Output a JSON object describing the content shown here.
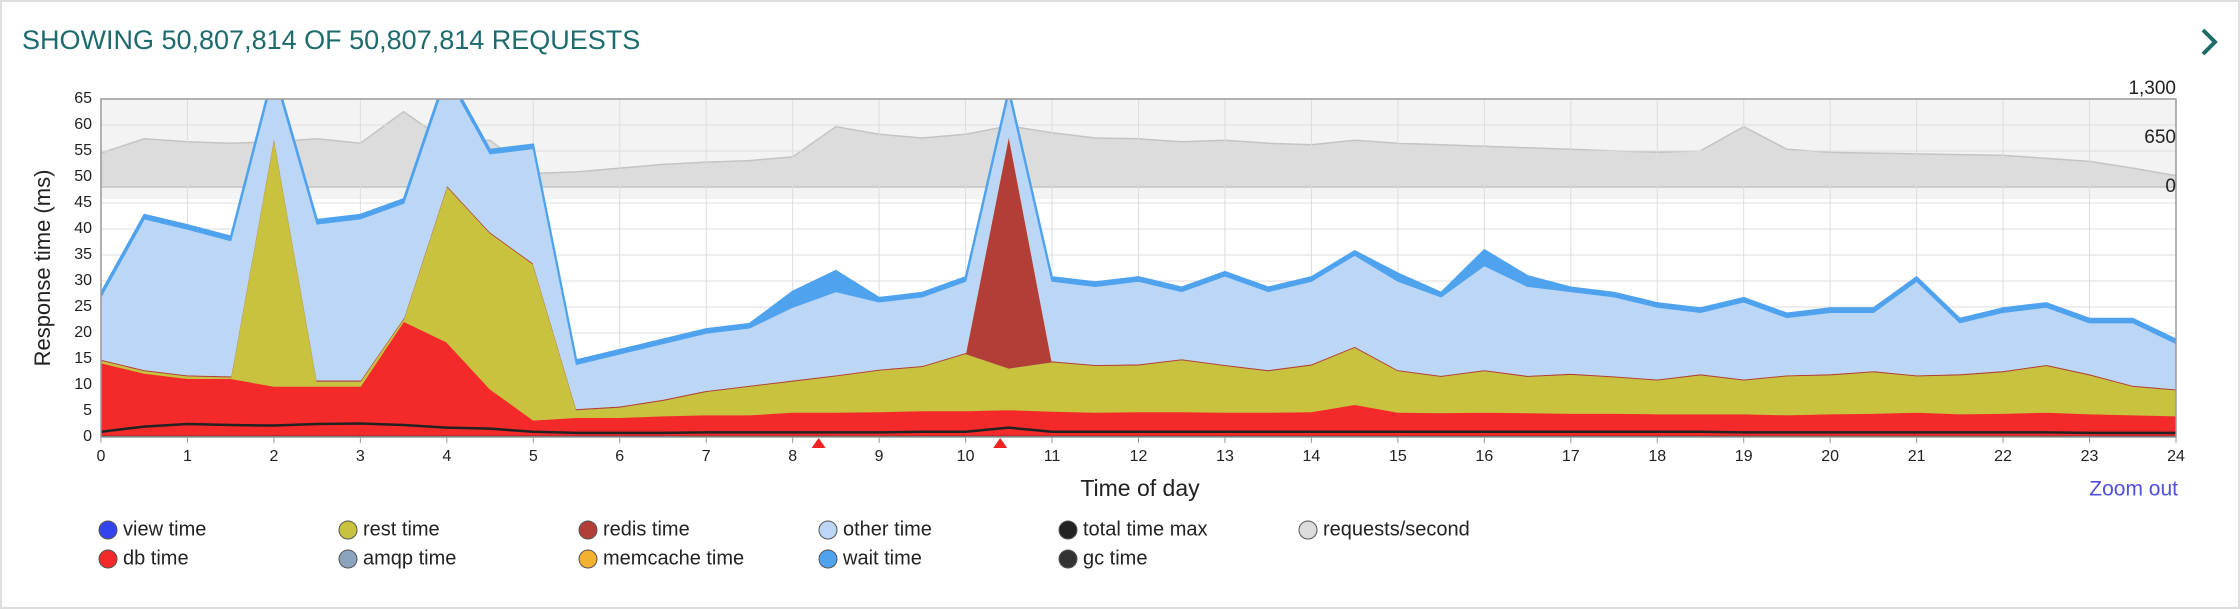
{
  "chart_data": {
    "type": "area",
    "title": "SHOWING 50,807,814 OF 50,807,814 REQUESTS",
    "xlabel": "Time of day",
    "ylabel": "Response time (ms)",
    "zoom_button": "Zoom out",
    "x": [
      0,
      0.5,
      1,
      1.5,
      2,
      2.5,
      3,
      3.5,
      4,
      4.5,
      5,
      5.5,
      6,
      6.5,
      7,
      7.5,
      8,
      8.5,
      9,
      9.5,
      10,
      10.5,
      11,
      11.5,
      12,
      12.5,
      13,
      13.5,
      14,
      14.5,
      15,
      15.5,
      16,
      16.5,
      17,
      17.5,
      18,
      18.5,
      19,
      19.5,
      20,
      20.5,
      21,
      21.5,
      22,
      22.5,
      23,
      23.5,
      24
    ],
    "xlim": [
      0,
      24
    ],
    "xticks": [
      0,
      1,
      2,
      3,
      4,
      5,
      6,
      7,
      8,
      9,
      10,
      11,
      12,
      13,
      14,
      15,
      16,
      17,
      18,
      19,
      20,
      21,
      22,
      23,
      24
    ],
    "ylim": [
      0,
      65
    ],
    "yticks": [
      0,
      5,
      10,
      15,
      20,
      25,
      30,
      35,
      40,
      45,
      50,
      55,
      60,
      65
    ],
    "y2lim": [
      0,
      1300
    ],
    "y2ticks": [
      0,
      650,
      {
        "value": 1300,
        "label": "1,300"
      }
    ],
    "grid": true,
    "event_markers": [
      8.3,
      10.4
    ],
    "event_color": "#ee2222",
    "series": [
      {
        "name": "view time",
        "color": "#3344ee",
        "kind": "area",
        "values": [
          0.3,
          0.3,
          0.3,
          0.3,
          0.3,
          0.3,
          0.3,
          0.3,
          0.3,
          0.3,
          0.3,
          0.3,
          0.3,
          0.3,
          0.3,
          0.3,
          0.3,
          0.3,
          0.3,
          0.3,
          0.3,
          0.3,
          0.3,
          0.3,
          0.3,
          0.3,
          0.3,
          0.3,
          0.3,
          0.3,
          0.3,
          0.3,
          0.3,
          0.3,
          0.3,
          0.3,
          0.3,
          0.3,
          0.3,
          0.3,
          0.3,
          0.3,
          0.3,
          0.3,
          0.3,
          0.3,
          0.3,
          0.3,
          0.3
        ]
      },
      {
        "name": "db time",
        "color": "#f42a2a",
        "kind": "area",
        "values": [
          14,
          12,
          11,
          11,
          9.5,
          9.5,
          9.5,
          22,
          18,
          9,
          3,
          3.5,
          3.5,
          3.8,
          4,
          4,
          4.5,
          4.5,
          4.6,
          4.8,
          4.8,
          5,
          4.7,
          4.5,
          4.6,
          4.6,
          4.5,
          4.5,
          4.6,
          6,
          4.5,
          4.4,
          4.5,
          4.4,
          4.3,
          4.3,
          4.2,
          4.2,
          4.2,
          4,
          4.2,
          4.3,
          4.5,
          4.2,
          4.3,
          4.5,
          4.2,
          4,
          3.8
        ]
      },
      {
        "name": "rest time",
        "color": "#c8c23e",
        "kind": "area",
        "values": [
          0.5,
          0.5,
          0.5,
          0.3,
          48,
          1,
          1,
          0.5,
          30,
          30,
          30,
          1.5,
          2,
          3,
          4.5,
          5.5,
          6,
          7,
          8,
          8.5,
          11,
          8,
          9.5,
          9,
          9,
          10,
          9,
          8,
          9,
          11,
          8,
          7,
          8,
          7,
          7.5,
          7,
          6.5,
          7.5,
          6.5,
          7.5,
          7.5,
          8,
          7,
          7.5,
          8,
          9,
          7.5,
          5.5,
          5
        ]
      },
      {
        "name": "amqp time",
        "color": "#8aa4bd",
        "kind": "area",
        "values": [
          0,
          0,
          0,
          0,
          0,
          0,
          0,
          0,
          0,
          0,
          0,
          0,
          0,
          0,
          0,
          0,
          0,
          0,
          0,
          0,
          0,
          0,
          0,
          0,
          0,
          0,
          0,
          0,
          0,
          0,
          0,
          0,
          0,
          0,
          0,
          0,
          0,
          0,
          0,
          0,
          0,
          0,
          0,
          0,
          0,
          0,
          0,
          0,
          0
        ]
      },
      {
        "name": "redis time",
        "color": "#b33e38",
        "kind": "area",
        "values": [
          0.2,
          0.2,
          0.2,
          0.2,
          0.2,
          0.2,
          0.2,
          0.2,
          0.2,
          0.2,
          0.2,
          0.2,
          0.2,
          0.2,
          0.2,
          0.2,
          0.2,
          0.2,
          0.2,
          0.2,
          0.2,
          45,
          0.2,
          0.2,
          0.2,
          0.2,
          0.2,
          0.2,
          0.2,
          0.2,
          0.2,
          0.2,
          0.2,
          0.2,
          0.2,
          0.2,
          0.2,
          0.2,
          0.2,
          0.2,
          0.2,
          0.2,
          0.2,
          0.2,
          0.2,
          0.2,
          0.2,
          0.2,
          0.2
        ]
      },
      {
        "name": "memcache time",
        "color": "#f2b130",
        "kind": "area",
        "values": [
          0,
          0,
          0,
          0,
          0,
          0,
          0,
          0,
          0,
          0,
          0,
          0,
          0,
          0,
          0,
          0,
          0,
          0,
          0,
          0,
          0,
          0,
          0,
          0,
          0,
          0,
          0,
          0,
          0,
          0,
          0,
          0,
          0,
          0,
          0,
          0,
          0,
          0,
          0,
          0,
          0,
          0,
          0,
          0,
          0,
          0,
          0,
          0,
          0
        ]
      },
      {
        "name": "other time",
        "color": "#bcd7f5",
        "kind": "area",
        "values": [
          12,
          29,
          28,
          26,
          12,
          30,
          31,
          22,
          21,
          15,
          22,
          8.5,
          10,
          10.7,
          11,
          11,
          14,
          16,
          12.9,
          13.2,
          13.7,
          8,
          15.3,
          15,
          15.9,
          12.9,
          17,
          15,
          15.9,
          17.5,
          17,
          15.1,
          20,
          17.1,
          15.7,
          15.2,
          13.8,
          11.8,
          14.8,
          11,
          11.8,
          11.2,
          18,
          9.8,
          11.2,
          11,
          9.8,
          12,
          8.7
        ]
      },
      {
        "name": "wait time",
        "color": "#4ea2ee",
        "kind": "area",
        "values": [
          0.8,
          0.8,
          0.8,
          0.8,
          0.8,
          0.8,
          0.8,
          0.8,
          0.8,
          0.8,
          0.8,
          0.8,
          0.8,
          0.8,
          0.8,
          0.8,
          3,
          4,
          0.8,
          0.8,
          0.8,
          0.8,
          0.8,
          0.8,
          0.8,
          0.8,
          0.8,
          0.8,
          0.8,
          0.8,
          1.5,
          0.8,
          3,
          2,
          0.8,
          0.8,
          0.8,
          0.8,
          0.8,
          0.8,
          0.8,
          0.8,
          0.8,
          0.8,
          0.8,
          0.8,
          0.8,
          0.8,
          0.8
        ]
      },
      {
        "name": "total time max",
        "color": "#222222",
        "kind": "line",
        "values": [
          1,
          2,
          2.5,
          2.3,
          2.2,
          2.5,
          2.6,
          2.3,
          1.8,
          1.6,
          1,
          0.8,
          0.8,
          0.8,
          0.9,
          0.9,
          0.9,
          0.9,
          0.9,
          1,
          1,
          1.8,
          1,
          1,
          1,
          1,
          1,
          1,
          1,
          1,
          1,
          1,
          1,
          1,
          1,
          1,
          1,
          1,
          0.9,
          0.9,
          0.9,
          0.9,
          0.9,
          0.9,
          0.9,
          0.9,
          0.8,
          0.8,
          0.8
        ]
      },
      {
        "name": "gc time",
        "color": "#333333",
        "kind": "line",
        "values": [
          0,
          0,
          0,
          0,
          0,
          0,
          0,
          0,
          0,
          0,
          0,
          0,
          0,
          0,
          0,
          0,
          0,
          0,
          0,
          0,
          0,
          0,
          0,
          0,
          0,
          0,
          0,
          0,
          0,
          0,
          0,
          0,
          0,
          0,
          0,
          0,
          0,
          0,
          0,
          0,
          0,
          0,
          0,
          0,
          0,
          0,
          0,
          0,
          0
        ]
      },
      {
        "name": "requests/second",
        "color": "#dcdcdc",
        "kind": "area",
        "axis": "y2",
        "values": [
          450,
          640,
          600,
          580,
          600,
          640,
          580,
          1000,
          600,
          620,
          180,
          200,
          250,
          300,
          330,
          350,
          400,
          800,
          700,
          650,
          700,
          810,
          720,
          650,
          640,
          600,
          620,
          580,
          560,
          620,
          580,
          560,
          540,
          520,
          500,
          480,
          460,
          480,
          800,
          500,
          460,
          450,
          440,
          430,
          420,
          380,
          340,
          250,
          150
        ]
      }
    ]
  }
}
